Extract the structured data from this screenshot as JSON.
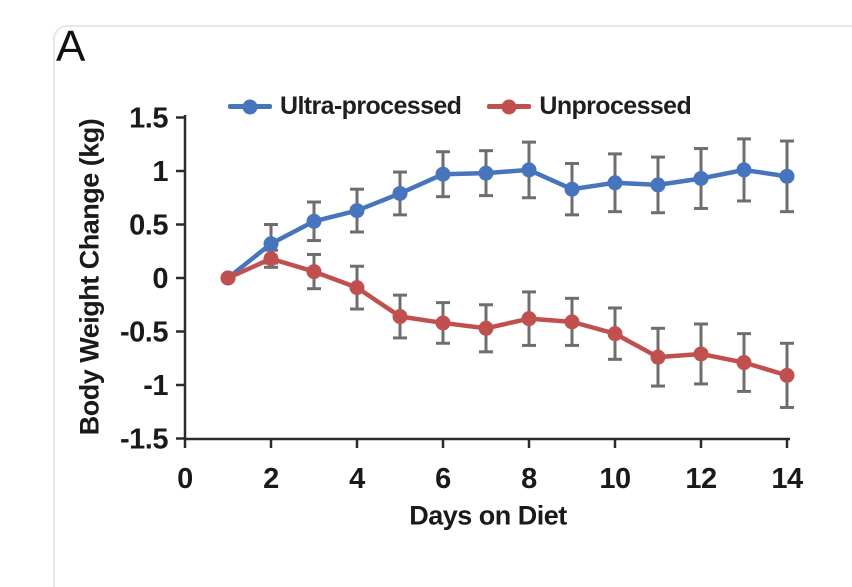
{
  "panel_label": "A",
  "chart_data": {
    "type": "line",
    "title": "",
    "xlabel": "Days on Diet",
    "ylabel": "Body Weight Change (kg)",
    "x": [
      1,
      2,
      3,
      4,
      5,
      6,
      7,
      8,
      9,
      10,
      11,
      12,
      13,
      14
    ],
    "x_ticks": [
      0,
      2,
      4,
      6,
      8,
      10,
      12,
      14
    ],
    "y_ticks": [
      1.5,
      1,
      0.5,
      0,
      -0.5,
      -1,
      -1.5
    ],
    "xlim": [
      0,
      14
    ],
    "ylim": [
      -1.5,
      1.5
    ],
    "grid": false,
    "legend_position": "top",
    "axis_color": "#2b2b2b",
    "error_bar_color": "#6e6e6e",
    "series": [
      {
        "name": "Ultra-processed",
        "color": "#4775BD",
        "values": [
          0,
          0.32,
          0.53,
          0.63,
          0.79,
          0.97,
          0.98,
          1.01,
          0.83,
          0.89,
          0.87,
          0.93,
          1.01,
          0.95
        ],
        "errors": [
          0,
          0.18,
          0.18,
          0.2,
          0.2,
          0.21,
          0.21,
          0.26,
          0.24,
          0.27,
          0.26,
          0.28,
          0.29,
          0.33
        ]
      },
      {
        "name": "Unprocessed",
        "color": "#C0504D",
        "values": [
          0,
          0.18,
          0.06,
          -0.09,
          -0.36,
          -0.42,
          -0.47,
          -0.38,
          -0.41,
          -0.52,
          -0.74,
          -0.71,
          -0.79,
          -0.91
        ],
        "errors": [
          0,
          0.08,
          0.16,
          0.2,
          0.2,
          0.19,
          0.22,
          0.25,
          0.22,
          0.24,
          0.27,
          0.28,
          0.27,
          0.3
        ]
      }
    ]
  }
}
